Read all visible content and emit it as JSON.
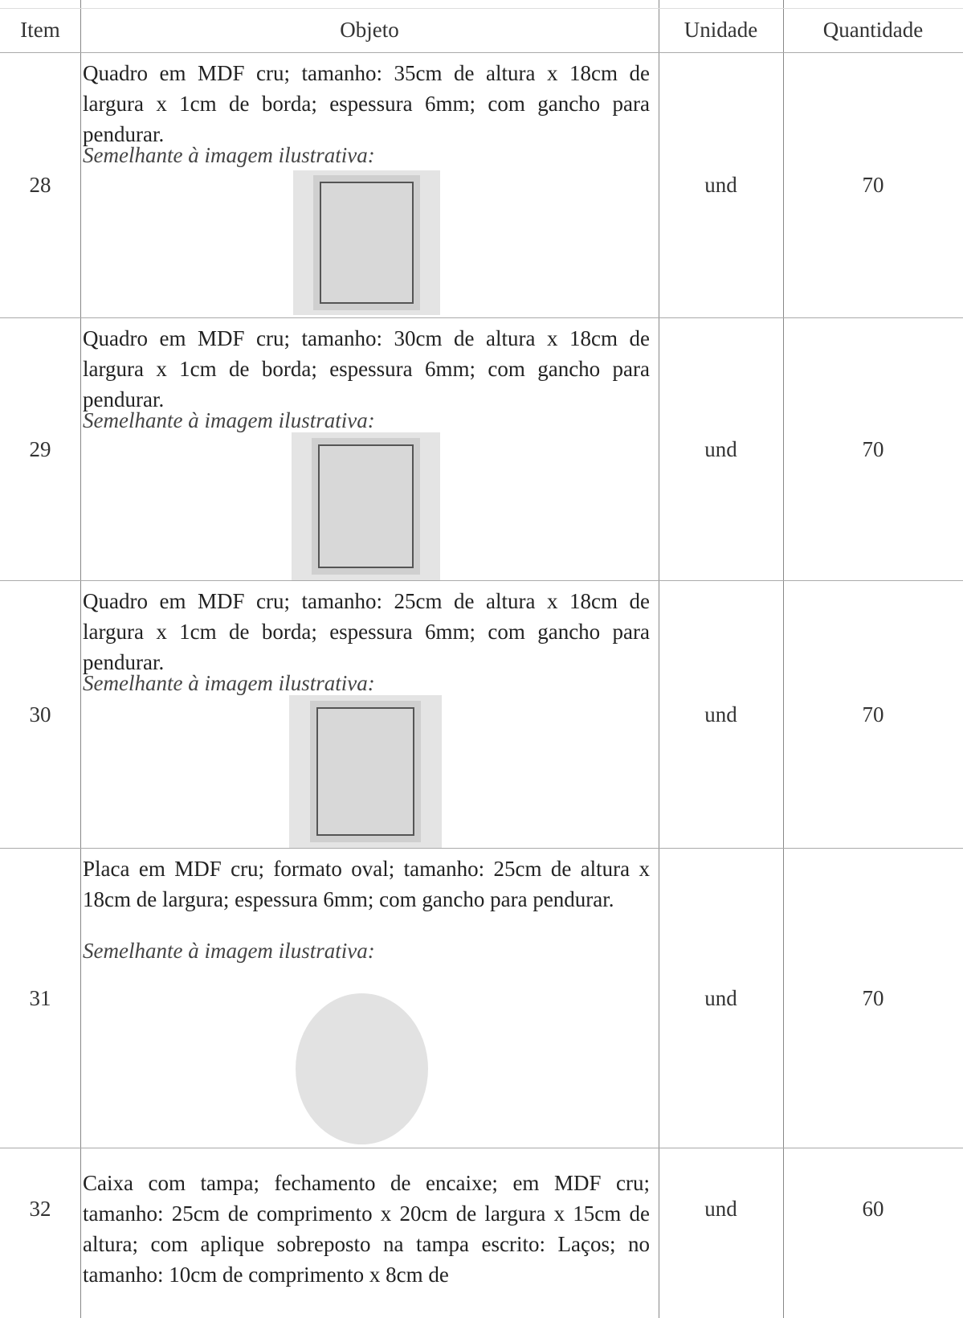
{
  "table": {
    "header": [
      "Item",
      "Objeto",
      "Unidade",
      "Quantidade"
    ],
    "rows": [
      {
        "item": "28",
        "description": "Quadro em MDF cru; tamanho: 35cm de altura x 18cm de largura x 1cm de borda; espessura 6mm; com gancho para pendurar.",
        "caption": "Semelhante à imagem ilustrativa:",
        "unit": "und",
        "quantity": "70"
      },
      {
        "item": "29",
        "description": "Quadro em MDF cru; tamanho: 30cm de altura x 18cm de largura x 1cm de borda; espessura 6mm; com gancho para pendurar.",
        "caption": "Semelhante à imagem ilustrativa:",
        "unit": "und",
        "quantity": "70"
      },
      {
        "item": "30",
        "description": "Quadro em MDF cru; tamanho: 25cm de altura x 18cm de largura x 1cm de borda; espessura 6mm; com gancho para pendurar.",
        "caption": "Semelhante à imagem ilustrativa:",
        "unit": "und",
        "quantity": "70"
      },
      {
        "item": "31",
        "description": "Placa em MDF cru; formato oval; tamanho: 25cm de altura x 18cm de largura; espessura 6mm; com gancho para pendurar.",
        "caption": "Semelhante à imagem ilustrativa:",
        "unit": "und",
        "quantity": "70"
      },
      {
        "item": "32",
        "description": "Caixa com tampa; fechamento de encaixe; em MDF cru; tamanho: 25cm de comprimento x 20cm de largura x 15cm de altura; com aplique sobreposto na tampa escrito: Laços; no tamanho: 10cm de comprimento x 8cm de",
        "caption": null,
        "unit": "und",
        "quantity": "60"
      }
    ]
  }
}
